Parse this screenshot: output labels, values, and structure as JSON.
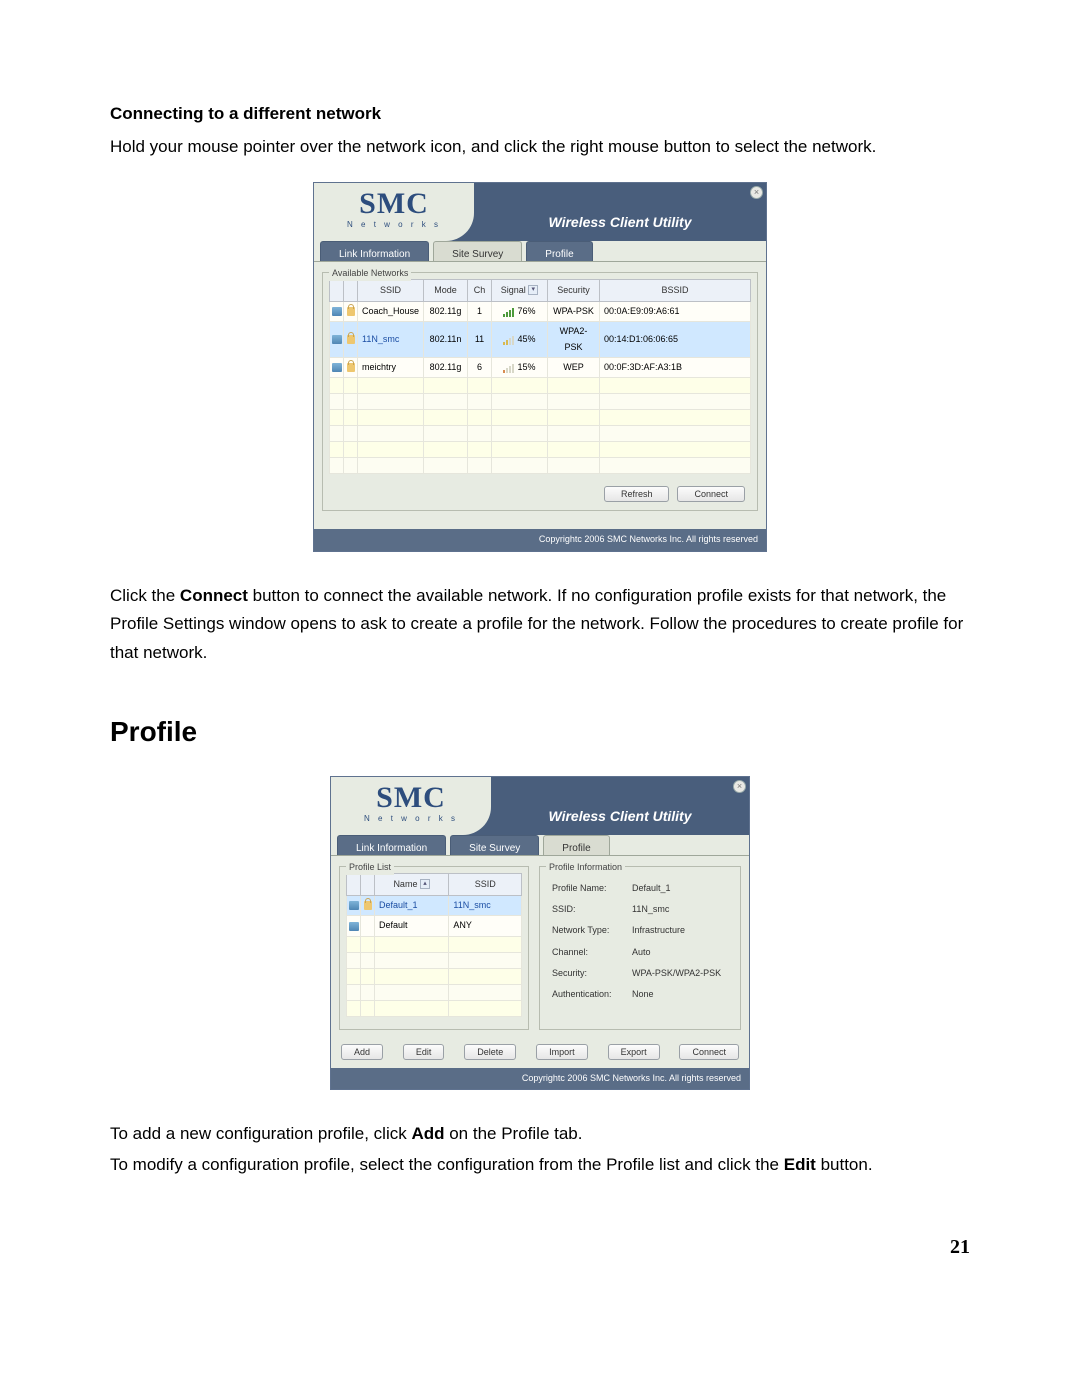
{
  "colors": {
    "header_bg": "#495e7c",
    "tab_bg": "#5a6d87",
    "tab_active_bg": "#d9dcd1",
    "panel_bg": "#e7ebe2",
    "table_row_highlight": "#d0e8ff",
    "logo": "#2d4d7d"
  },
  "page": {
    "section1_heading": "Connecting to a different network",
    "section1_body": "Hold your mouse pointer over the network icon, and click the right mouse button to select the network.",
    "connect_prefix": "Click the ",
    "connect_bold": "Connect",
    "connect_suffix": " button to connect the available network. If no configuration profile exists for that network, the Profile Settings window opens to ask to create a profile for the network. Follow the procedures to create profile for that network.",
    "h2": "Profile",
    "add_prefix": "To add a new configuration profile, click ",
    "add_bold": "Add",
    "add_suffix": " on the Profile tab.",
    "edit_prefix": "To modify a configuration profile, select the configuration from the Profile list and click the ",
    "edit_bold": "Edit",
    "edit_suffix": " button.",
    "page_number": "21"
  },
  "app_common": {
    "logo_main": "SMC",
    "logo_sub": "N e t w o r k s",
    "title": "Wireless Client Utility",
    "tabs": {
      "link": "Link Information",
      "survey": "Site Survey",
      "profile": "Profile"
    },
    "footer": "Copyrightc 2006 SMC Networks Inc. All rights reserved",
    "close": "×"
  },
  "survey": {
    "legend": "Available Networks",
    "columns": {
      "ssid": "SSID",
      "mode": "Mode",
      "ch": "Ch",
      "signal": "Signal",
      "security": "Security",
      "bssid": "BSSID"
    },
    "rows": [
      {
        "ssid": "Coach_House",
        "mode": "802.11g",
        "ch": "1",
        "signal_pct": "76%",
        "signal_level": 4,
        "security": "WPA-PSK",
        "bssid": "00:0A:E9:09:A6:61",
        "hl": false
      },
      {
        "ssid": "11N_smc",
        "mode": "802.11n",
        "ch": "11",
        "signal_pct": "45%",
        "signal_level": 2,
        "security": "WPA2-PSK",
        "bssid": "00:14:D1:06:06:65",
        "hl": true
      },
      {
        "ssid": "meichtry",
        "mode": "802.11g",
        "ch": "6",
        "signal_pct": "15%",
        "signal_level": 1,
        "security": "WEP",
        "bssid": "00:0F:3D:AF:A3:1B",
        "hl": false
      }
    ],
    "buttons": {
      "refresh": "Refresh",
      "connect": "Connect"
    }
  },
  "profile": {
    "list_legend": "Profile List",
    "info_legend": "Profile Information",
    "columns": {
      "name": "Name",
      "ssid": "SSID"
    },
    "rows": [
      {
        "name": "Default_1",
        "ssid": "11N_smc",
        "locked": true,
        "hl": true
      },
      {
        "name": "Default",
        "ssid": "ANY",
        "locked": false,
        "hl": false
      }
    ],
    "info": {
      "profile_name_k": "Profile Name:",
      "profile_name_v": "Default_1",
      "ssid_k": "SSID:",
      "ssid_v": "11N_smc",
      "nettype_k": "Network Type:",
      "nettype_v": "Infrastructure",
      "channel_k": "Channel:",
      "channel_v": "Auto",
      "security_k": "Security:",
      "security_v": "WPA-PSK/WPA2-PSK",
      "auth_k": "Authentication:",
      "auth_v": "None"
    },
    "buttons": {
      "add": "Add",
      "edit": "Edit",
      "delete": "Delete",
      "import": "Import",
      "export": "Export",
      "connect": "Connect"
    }
  }
}
